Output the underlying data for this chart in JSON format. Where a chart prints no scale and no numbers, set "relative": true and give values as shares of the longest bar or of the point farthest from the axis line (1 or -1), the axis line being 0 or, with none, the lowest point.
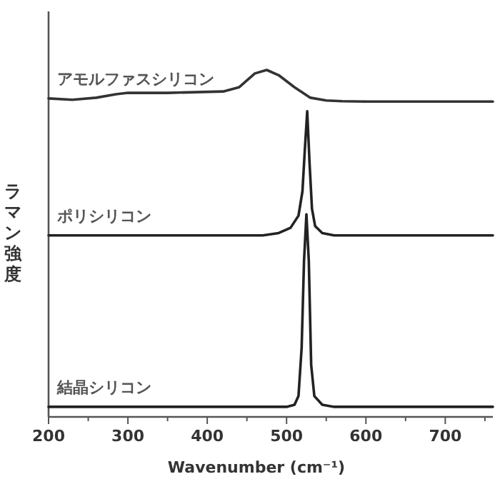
{
  "chart_data": {
    "type": "line",
    "relative": true,
    "xlabel": "Wavenumber (cm⁻¹)",
    "ylabel": "ラマン強度",
    "xlim": [
      200,
      760
    ],
    "xticks": [
      200,
      {
        "value": 250,
        "label": null
      },
      300,
      {
        "value": 350,
        "label": null
      },
      400,
      {
        "value": 450,
        "label": null
      },
      500,
      {
        "value": 550,
        "label": null
      },
      600,
      {
        "value": 650,
        "label": null
      },
      700,
      {
        "value": 750,
        "label": null
      }
    ],
    "grid": false,
    "marker": "none",
    "line_style": "solid",
    "series": [
      {
        "name": "アモルファスシリコン",
        "color": "#333333",
        "x": [
          200,
          230,
          260,
          285,
          300,
          350,
          420,
          440,
          460,
          475,
          490,
          510,
          530,
          550,
          570,
          600,
          760
        ],
        "values": [
          0.918,
          0.914,
          0.92,
          0.93,
          0.934,
          0.934,
          0.938,
          0.95,
          0.99,
          1.0,
          0.985,
          0.95,
          0.92,
          0.912,
          0.91,
          0.909,
          0.909
        ]
      },
      {
        "name": "ポリシリコン",
        "color": "#222222",
        "x": [
          200,
          470,
          490,
          505,
          515,
          520,
          523,
          526,
          529,
          532,
          536,
          545,
          560,
          760
        ],
        "values": [
          0.523,
          0.523,
          0.53,
          0.545,
          0.58,
          0.65,
          0.77,
          0.881,
          0.73,
          0.6,
          0.55,
          0.53,
          0.523,
          0.523
        ]
      },
      {
        "name": "結晶シリコン",
        "color": "#222222",
        "x": [
          200,
          500,
          510,
          515,
          519,
          522,
          525,
          528,
          531,
          535,
          545,
          560,
          760
        ],
        "values": [
          0.029,
          0.029,
          0.035,
          0.06,
          0.2,
          0.45,
          0.584,
          0.45,
          0.15,
          0.06,
          0.035,
          0.029,
          0.029
        ]
      }
    ]
  }
}
